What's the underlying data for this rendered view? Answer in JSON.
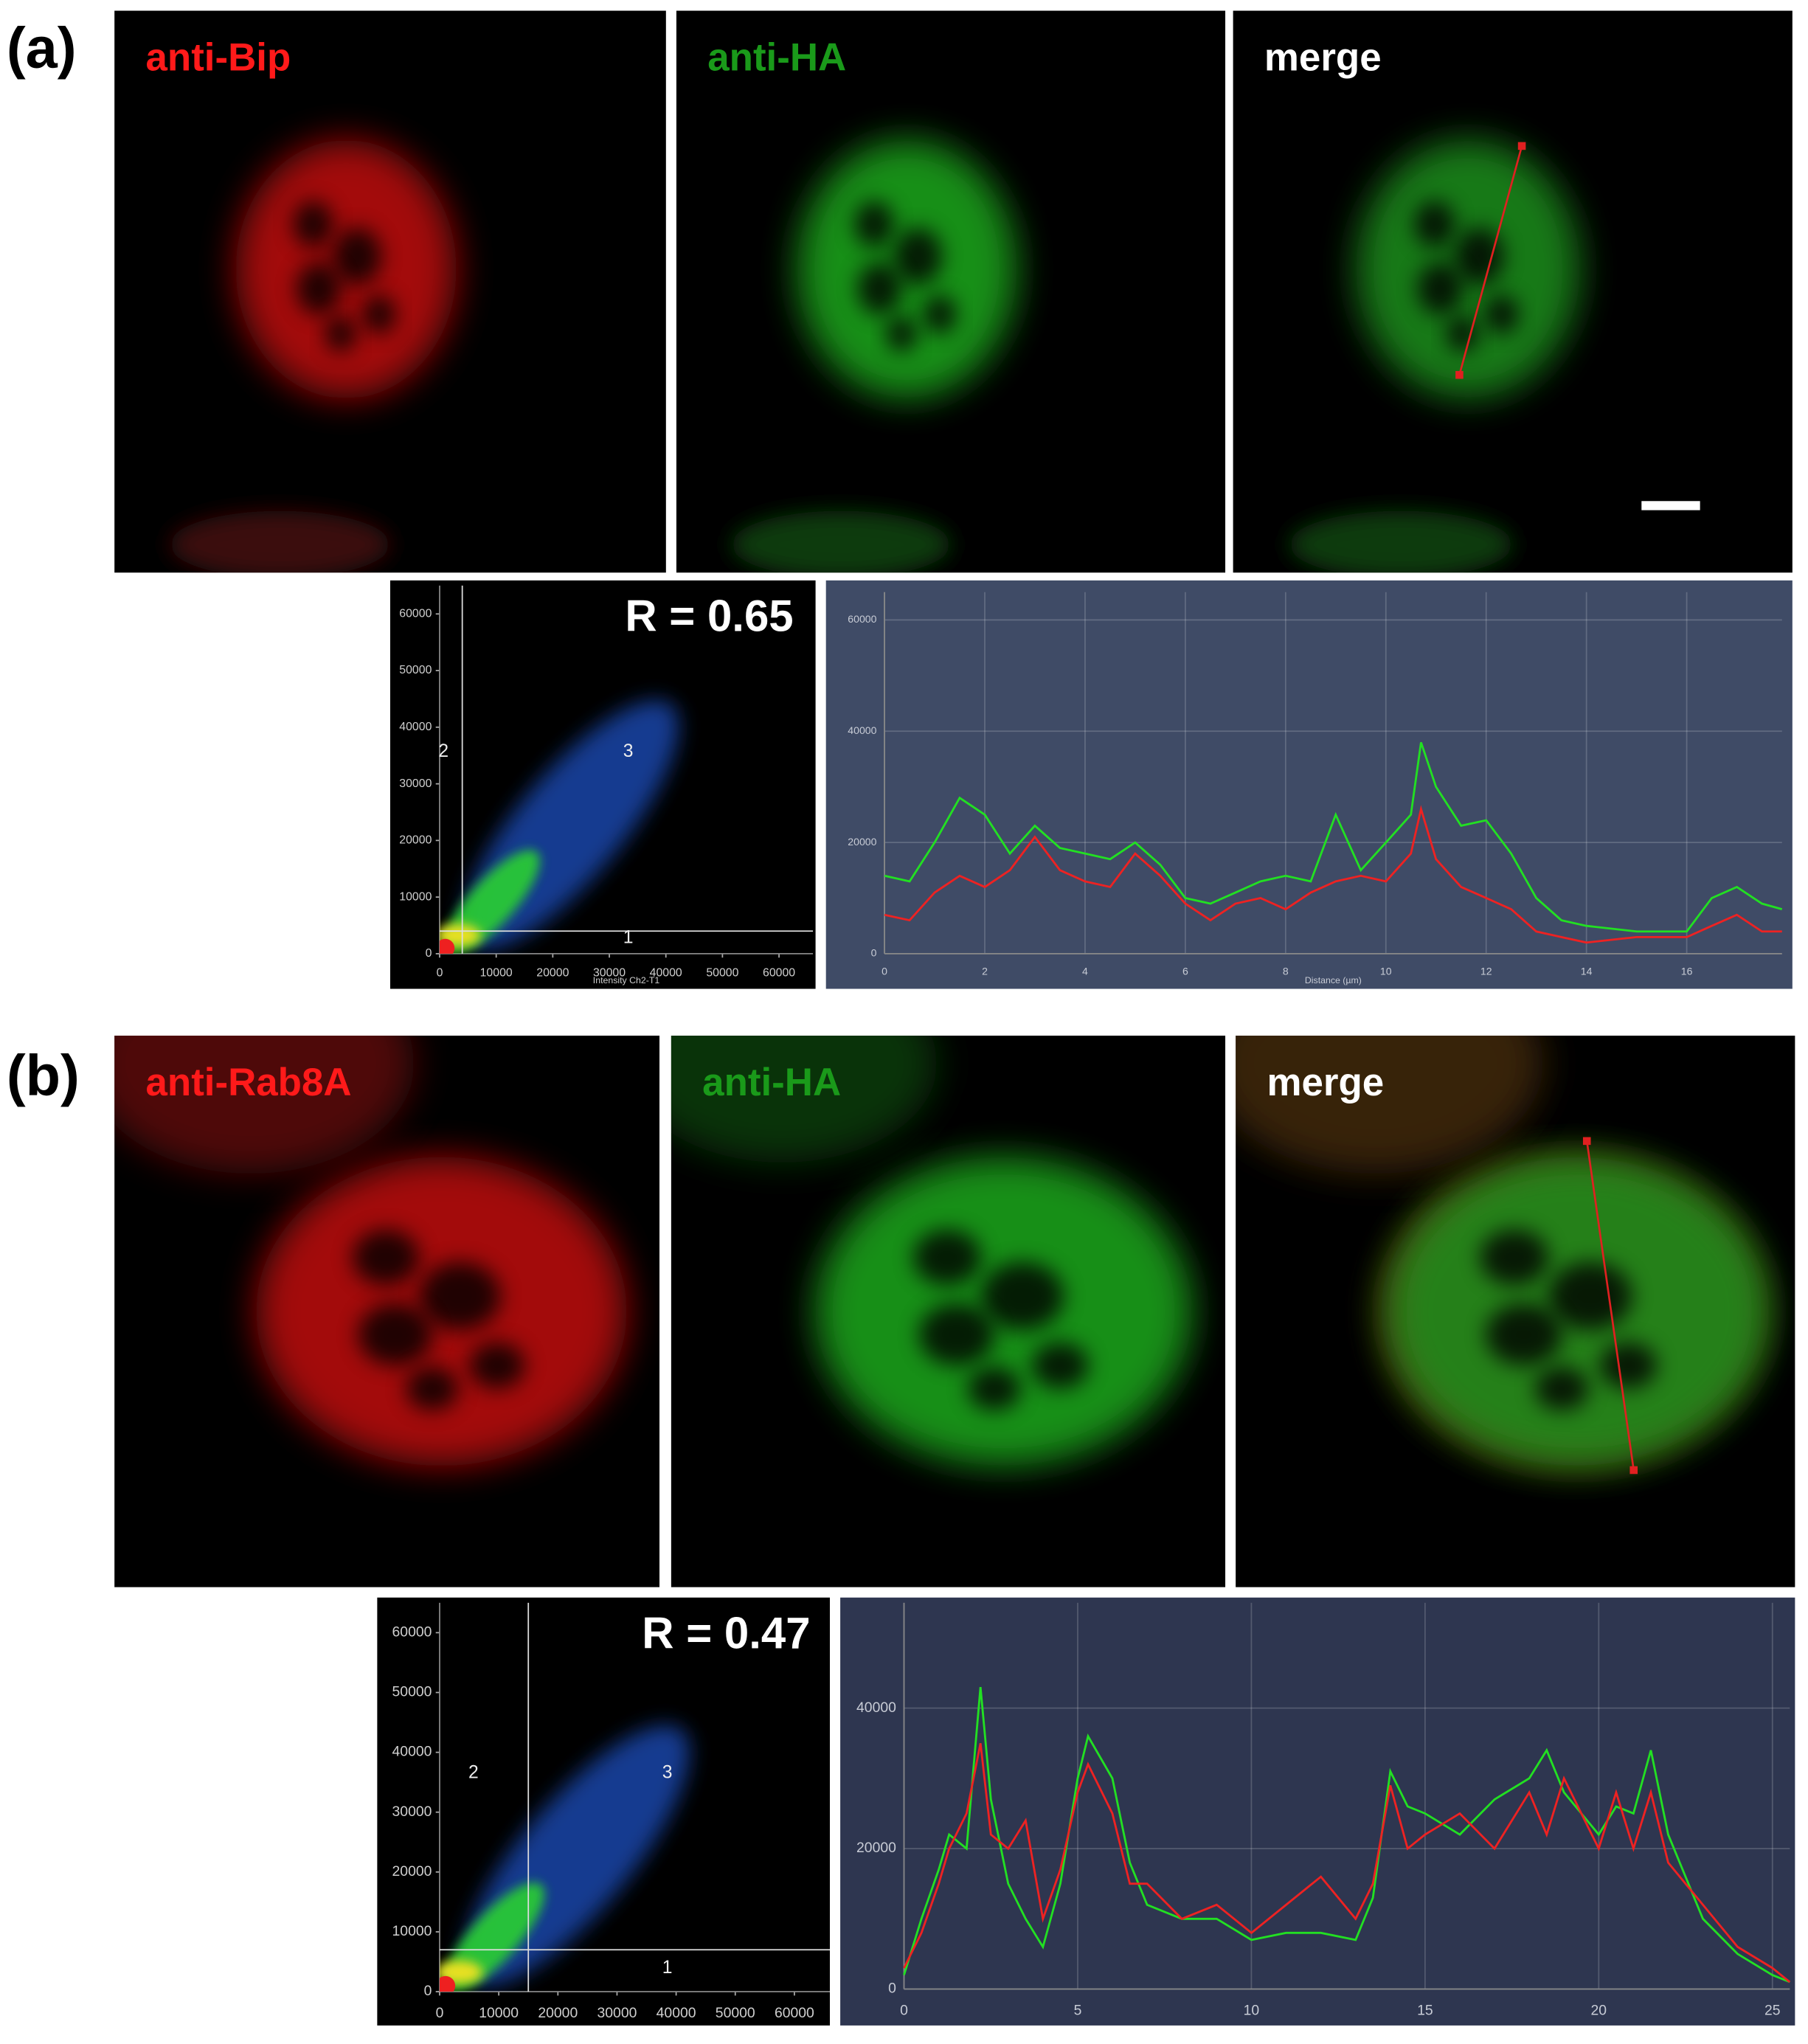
{
  "panels": [
    {
      "label": "(a)",
      "images": [
        {
          "label": "anti-Bip",
          "color": "#ff1a1a"
        },
        {
          "label": "anti-HA",
          "color": "#1a9a1a"
        },
        {
          "label": "merge",
          "color": "#ffffff"
        }
      ]
    },
    {
      "label": "(b)",
      "images": [
        {
          "label": "anti-Rab8A",
          "color": "#ff1a1a"
        },
        {
          "label": "anti-HA",
          "color": "#1a9a1a"
        },
        {
          "label": "merge",
          "color": "#ffffff"
        }
      ]
    }
  ],
  "chart_data": [
    {
      "type": "scatter-density",
      "text": "R = 0.65",
      "x_label": "Intensity Ch2-T1",
      "quadrant_labels": [
        "1",
        "2",
        "3"
      ],
      "x_threshold": 4000,
      "y_threshold": 4000,
      "xlim": [
        0,
        66000
      ],
      "ylim": [
        0,
        65000
      ],
      "xticks": [
        0,
        10000,
        20000,
        30000,
        40000,
        50000,
        60000
      ],
      "yticks": [
        0,
        10000,
        20000,
        30000,
        40000,
        50000,
        60000
      ]
    },
    {
      "type": "line",
      "x_label": "Distance (µm)",
      "x": [
        0,
        0.5,
        1,
        1.5,
        2,
        2.5,
        3,
        3.5,
        4,
        4.5,
        5,
        5.5,
        6,
        6.5,
        7,
        7.5,
        8,
        8.5,
        9,
        9.5,
        10,
        10.5,
        10.7,
        11,
        11.5,
        12,
        12.5,
        13,
        13.5,
        14,
        15,
        16,
        16.5,
        17,
        17.5,
        17.9
      ],
      "series": [
        {
          "color": "#22e022",
          "values": [
            14000,
            13000,
            20000,
            28000,
            25000,
            18000,
            23000,
            19000,
            18000,
            17000,
            20000,
            16000,
            10000,
            9000,
            11000,
            13000,
            14000,
            13000,
            25000,
            15000,
            20000,
            25000,
            38000,
            30000,
            23000,
            24000,
            18000,
            10000,
            6000,
            5000,
            4000,
            4000,
            10000,
            12000,
            9000,
            8000
          ]
        },
        {
          "color": "#ee2222",
          "values": [
            7000,
            6000,
            11000,
            14000,
            12000,
            15000,
            21000,
            15000,
            13000,
            12000,
            18000,
            14000,
            9000,
            6000,
            9000,
            10000,
            8000,
            11000,
            13000,
            14000,
            13000,
            18000,
            26000,
            17000,
            12000,
            10000,
            8000,
            4000,
            3000,
            2000,
            3000,
            3000,
            5000,
            7000,
            4000,
            4000
          ]
        }
      ],
      "xlim": [
        0,
        17.9
      ],
      "ylim": [
        0,
        65000
      ],
      "xticks": [
        0,
        2,
        4,
        6,
        8,
        10,
        12,
        14,
        16
      ],
      "yticks": [
        0,
        20000,
        40000,
        60000
      ],
      "grid": true
    },
    {
      "type": "scatter-density",
      "text": "R = 0.47",
      "quadrant_labels": [
        "1",
        "2",
        "3"
      ],
      "x_threshold": 15000,
      "y_threshold": 7000,
      "xlim": [
        0,
        66000
      ],
      "ylim": [
        0,
        65000
      ],
      "xticks": [
        0,
        10000,
        20000,
        30000,
        40000,
        50000,
        60000
      ],
      "yticks": [
        0,
        10000,
        20000,
        30000,
        40000,
        50000,
        60000
      ]
    },
    {
      "type": "line",
      "x": [
        0,
        0.5,
        1,
        1.3,
        1.8,
        2.2,
        2.5,
        3,
        3.5,
        4,
        4.5,
        5,
        5.3,
        6,
        6.5,
        7,
        8,
        9,
        10,
        11,
        12,
        13,
        13.5,
        14,
        14.5,
        15,
        16,
        17,
        18,
        18.5,
        19,
        20,
        20.5,
        21,
        21.5,
        22,
        23,
        24,
        25,
        25.5
      ],
      "series": [
        {
          "color": "#22e022",
          "values": [
            2000,
            10000,
            17000,
            22000,
            20000,
            43000,
            27000,
            15000,
            10000,
            6000,
            15000,
            30000,
            36000,
            30000,
            18000,
            12000,
            10000,
            10000,
            7000,
            8000,
            8000,
            7000,
            13000,
            31000,
            26000,
            25000,
            22000,
            27000,
            30000,
            34000,
            28000,
            22000,
            26000,
            25000,
            34000,
            22000,
            10000,
            5000,
            2000,
            1000
          ]
        },
        {
          "color": "#ee2222",
          "values": [
            3000,
            8000,
            15000,
            20000,
            25000,
            35000,
            22000,
            20000,
            24000,
            10000,
            17000,
            28000,
            32000,
            25000,
            15000,
            15000,
            10000,
            12000,
            8000,
            12000,
            16000,
            10000,
            15000,
            29000,
            20000,
            22000,
            25000,
            20000,
            28000,
            22000,
            30000,
            20000,
            28000,
            20000,
            28000,
            18000,
            12000,
            6000,
            3000,
            1000
          ]
        }
      ],
      "xlim": [
        0,
        25.5
      ],
      "ylim": [
        0,
        55000
      ],
      "xticks": [
        0,
        5,
        10,
        15,
        20,
        25
      ],
      "yticks": [
        0,
        20000,
        40000
      ],
      "grid": true
    }
  ]
}
